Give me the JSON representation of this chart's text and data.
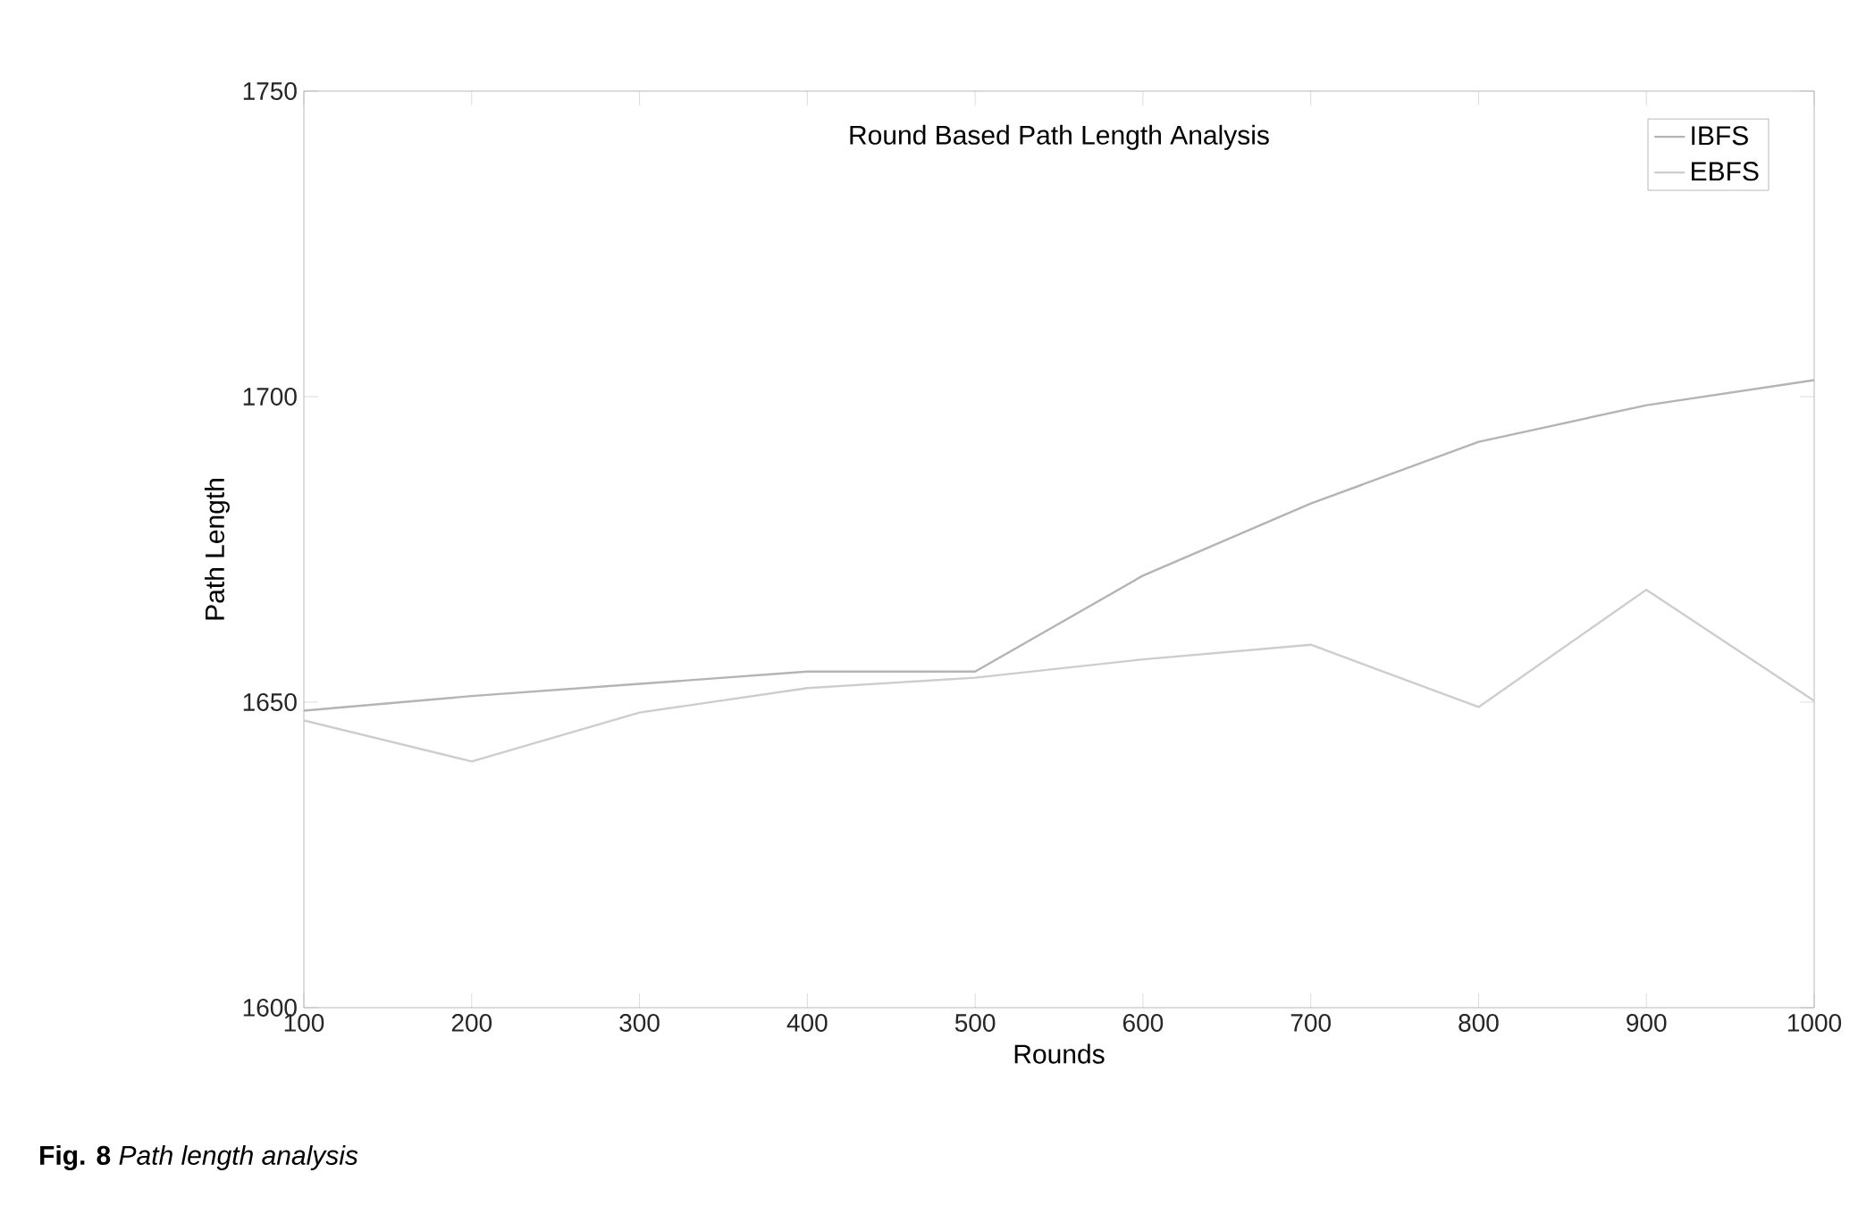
{
  "chart_data": {
    "type": "line",
    "title": "Round Based Path Length Analysis",
    "xlabel": "Rounds",
    "ylabel": "Path Length",
    "annotations": [
      "**Fig. 8**  *Path length analysis*"
    ],
    "x": [
      100,
      200,
      300,
      400,
      500,
      600,
      700,
      800,
      900,
      1000
    ],
    "series": [
      {
        "name": "IBFS",
        "color": "#b4b4b4",
        "values": [
          1648.6,
          1651,
          1653,
          1655,
          1655,
          1670.7,
          1682.5,
          1692.6,
          1698.6,
          1702.7
        ]
      },
      {
        "name": "EBFS",
        "color": "#cdcdcd",
        "values": [
          1647,
          1640.3,
          1648.3,
          1652.3,
          1654,
          1657,
          1659.4,
          1649.2,
          1668.4,
          1650.2
        ]
      }
    ],
    "xlim": [
      100,
      1000
    ],
    "ylim": [
      1600,
      1750
    ],
    "xticks": [
      100,
      200,
      300,
      400,
      500,
      600,
      700,
      800,
      900,
      1000
    ],
    "yticks": [
      1600,
      1650,
      1700,
      1750
    ],
    "legend": "top right"
  }
}
